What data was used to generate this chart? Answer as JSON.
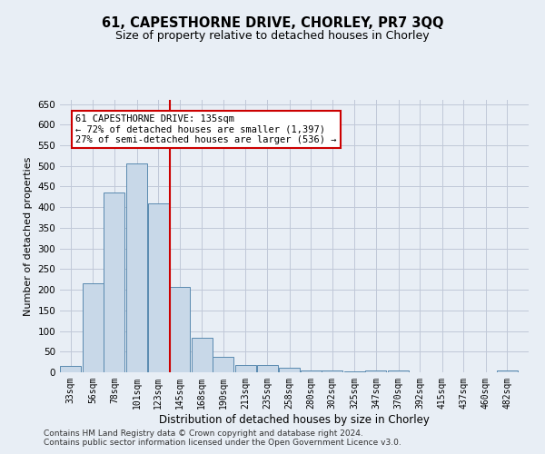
{
  "title": "61, CAPESTHORNE DRIVE, CHORLEY, PR7 3QQ",
  "subtitle": "Size of property relative to detached houses in Chorley",
  "xlabel": "Distribution of detached houses by size in Chorley",
  "ylabel": "Number of detached properties",
  "footer_line1": "Contains HM Land Registry data © Crown copyright and database right 2024.",
  "footer_line2": "Contains public sector information licensed under the Open Government Licence v3.0.",
  "bins": [
    33,
    56,
    78,
    101,
    123,
    145,
    168,
    190,
    213,
    235,
    258,
    280,
    302,
    325,
    347,
    370,
    392,
    415,
    437,
    460,
    482
  ],
  "heights": [
    15,
    215,
    435,
    505,
    410,
    207,
    83,
    38,
    18,
    18,
    10,
    5,
    5,
    3,
    5,
    5,
    1,
    1,
    1,
    1,
    5
  ],
  "bar_color": "#c8d8e8",
  "bar_edge_color": "#5a8ab0",
  "red_line_x": 135,
  "annotation_line1": "61 CAPESTHORNE DRIVE: 135sqm",
  "annotation_line2": "← 72% of detached houses are smaller (1,397)",
  "annotation_line3": "27% of semi-detached houses are larger (536) →",
  "annotation_box_color": "#ffffff",
  "annotation_box_edge": "#cc0000",
  "red_line_color": "#cc0000",
  "ylim": [
    0,
    660
  ],
  "yticks": [
    0,
    50,
    100,
    150,
    200,
    250,
    300,
    350,
    400,
    450,
    500,
    550,
    600,
    650
  ],
  "grid_color": "#c0c8d8",
  "background_color": "#e8eef5",
  "bin_width": 22,
  "xlim_left": 22,
  "xlim_right": 504
}
